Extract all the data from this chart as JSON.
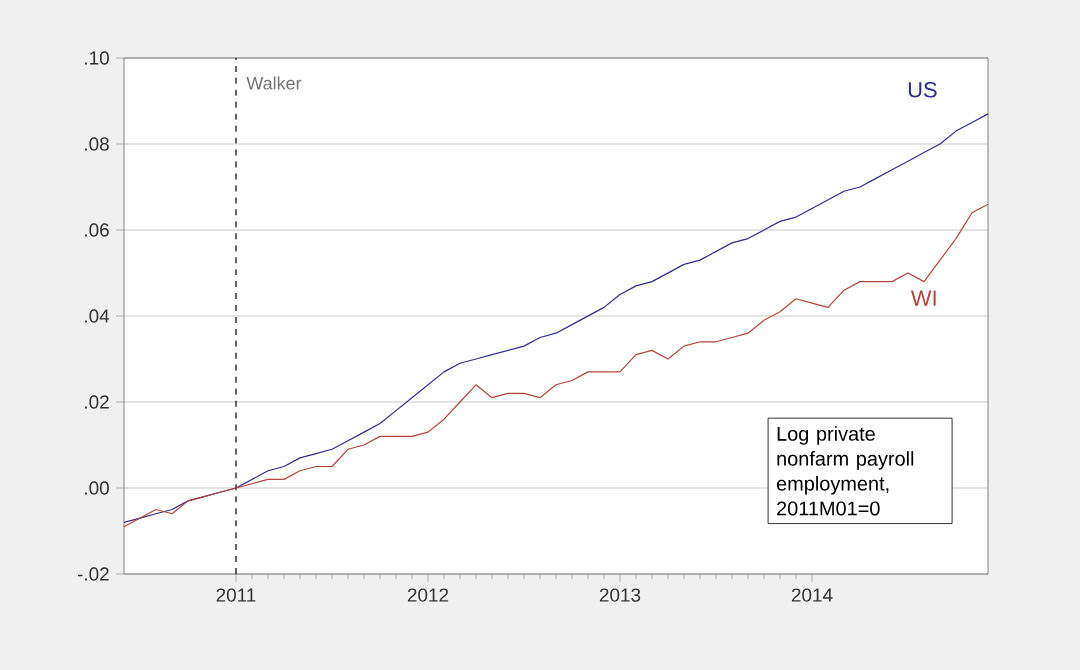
{
  "chart_data": {
    "type": "line",
    "x": [
      "2010-06",
      "2010-07",
      "2010-08",
      "2010-09",
      "2010-10",
      "2010-11",
      "2010-12",
      "2011-01",
      "2011-02",
      "2011-03",
      "2011-04",
      "2011-05",
      "2011-06",
      "2011-07",
      "2011-08",
      "2011-09",
      "2011-10",
      "2011-11",
      "2011-12",
      "2012-01",
      "2012-02",
      "2012-03",
      "2012-04",
      "2012-05",
      "2012-06",
      "2012-07",
      "2012-08",
      "2012-09",
      "2012-10",
      "2012-11",
      "2012-12",
      "2013-01",
      "2013-02",
      "2013-03",
      "2013-04",
      "2013-05",
      "2013-06",
      "2013-07",
      "2013-08",
      "2013-09",
      "2013-10",
      "2013-11",
      "2013-12",
      "2014-01",
      "2014-02",
      "2014-03",
      "2014-04",
      "2014-05",
      "2014-06",
      "2014-07",
      "2014-08",
      "2014-09",
      "2014-10",
      "2014-11",
      "2014-12"
    ],
    "series": [
      {
        "name": "US",
        "color": "#2e2e8a",
        "values": [
          -0.008,
          -0.007,
          -0.006,
          -0.005,
          -0.003,
          -0.002,
          -0.001,
          0.0,
          0.002,
          0.004,
          0.005,
          0.007,
          0.008,
          0.009,
          0.011,
          0.013,
          0.015,
          0.018,
          0.021,
          0.024,
          0.027,
          0.029,
          0.03,
          0.031,
          0.032,
          0.033,
          0.035,
          0.036,
          0.038,
          0.04,
          0.042,
          0.045,
          0.047,
          0.048,
          0.05,
          0.052,
          0.053,
          0.055,
          0.057,
          0.058,
          0.06,
          0.062,
          0.063,
          0.065,
          0.067,
          0.069,
          0.07,
          0.072,
          0.074,
          0.076,
          0.078,
          0.08,
          0.083,
          0.085,
          0.087
        ]
      },
      {
        "name": "WI",
        "color": "#b5443a",
        "values": [
          -0.009,
          -0.007,
          -0.005,
          -0.006,
          -0.003,
          -0.002,
          -0.001,
          0.0,
          0.001,
          0.002,
          0.002,
          0.004,
          0.005,
          0.005,
          0.009,
          0.01,
          0.012,
          0.012,
          0.012,
          0.013,
          0.016,
          0.02,
          0.024,
          0.021,
          0.022,
          0.022,
          0.021,
          0.024,
          0.025,
          0.027,
          0.027,
          0.027,
          0.031,
          0.032,
          0.03,
          0.033,
          0.034,
          0.034,
          0.035,
          0.036,
          0.039,
          0.041,
          0.044,
          0.043,
          0.042,
          0.046,
          0.048,
          0.048,
          0.048,
          0.05,
          0.048,
          0.053,
          0.058,
          0.064,
          0.066
        ]
      }
    ],
    "xlim": [
      "2010-06",
      "2014-12"
    ],
    "xticks": [
      {
        "value": "2011-01",
        "label": "2011"
      },
      {
        "value": "2012-01",
        "label": "2012"
      },
      {
        "value": "2013-01",
        "label": "2013"
      },
      {
        "value": "2014-01",
        "label": "2014"
      }
    ],
    "ylim": [
      -0.02,
      0.1
    ],
    "yticks": [
      {
        "value": -0.02,
        "label": "-.02"
      },
      {
        "value": 0.0,
        "label": ".00"
      },
      {
        "value": 0.02,
        "label": ".02"
      },
      {
        "value": 0.04,
        "label": ".04"
      },
      {
        "value": 0.06,
        "label": ".06"
      },
      {
        "value": 0.08,
        "label": ".08"
      },
      {
        "value": 0.1,
        "label": ".10"
      }
    ],
    "grid": "y",
    "ref_lines": [
      {
        "axis": "x",
        "value": "2011-01",
        "label": "Walker",
        "line_style": "dashed",
        "color": "#000000"
      }
    ],
    "annotations": [
      "Log private nonfarm payroll employment, 2011M01=0"
    ]
  }
}
